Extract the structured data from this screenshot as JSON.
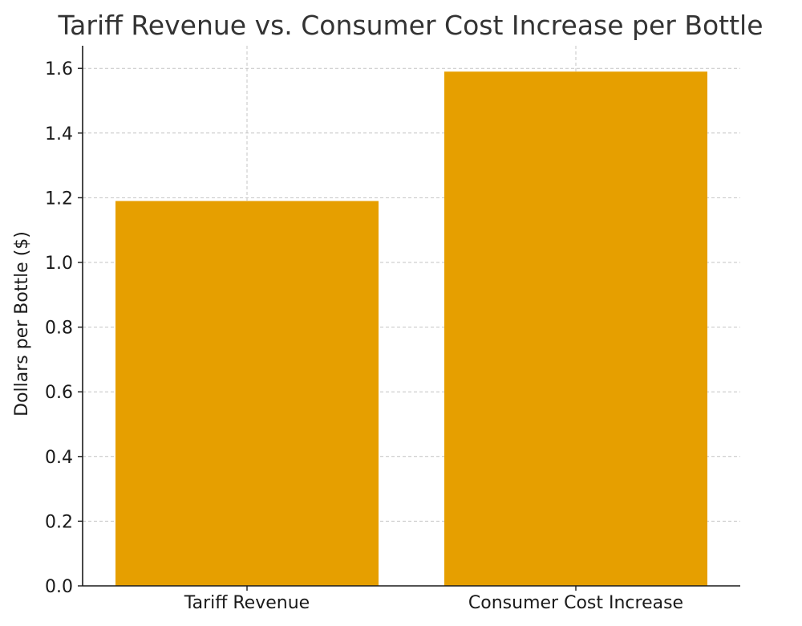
{
  "chart_data": {
    "type": "bar",
    "title": "Tariff Revenue vs. Consumer Cost Increase per Bottle",
    "xlabel": "",
    "ylabel": "Dollars per Bottle ($)",
    "categories": [
      "Tariff Revenue",
      "Consumer Cost Increase"
    ],
    "values": [
      1.19,
      1.59
    ],
    "ylim": [
      0,
      1.67
    ],
    "yticks": [
      0.0,
      0.2,
      0.4,
      0.6,
      0.8,
      1.0,
      1.2,
      1.4,
      1.6
    ],
    "ytick_labels": [
      "0.0",
      "0.2",
      "0.4",
      "0.6",
      "0.8",
      "1.0",
      "1.2",
      "1.4",
      "1.6"
    ],
    "grid": true,
    "bar_color": "#e69f00"
  }
}
